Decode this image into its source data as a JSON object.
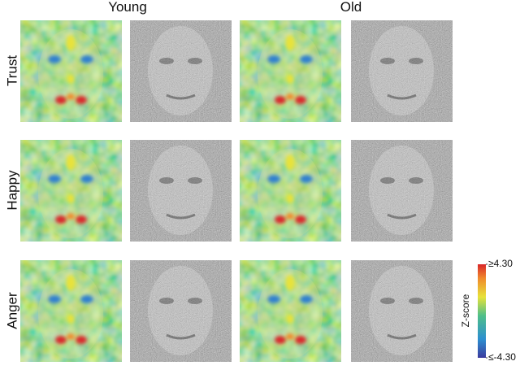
{
  "columns": [
    "Young",
    "Old"
  ],
  "rows": [
    "Trust",
    "Happy",
    "Anger"
  ],
  "colorbar": {
    "label": "Z-score",
    "max": {
      "value": 4.3,
      "label": "≥4.30"
    },
    "min": {
      "value": -4.3,
      "label": "≤-4.30"
    }
  }
}
